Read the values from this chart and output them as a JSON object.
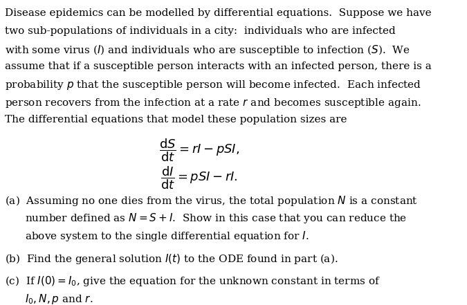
{
  "bg_color": "#ffffff",
  "text_color": "#000000",
  "figsize": [
    6.75,
    4.41
  ],
  "dpi": 100,
  "paragraph": "Disease epidemics can be modelled by differential equations.  Suppose we have\ntwo sub-populations of individuals in a city:  individuals who are infected\nwith some virus ($I$) and individuals who are susceptible to infection ($S$).  We\nassume that if a susceptible person interacts with an infected person, there is a\nprobability $p$ that the susceptible person will become infected.  Each infected\nperson recovers from the infection at a rate $r$ and becomes susceptible again.\nThe differential equations that model these population sizes are",
  "eq1_num": "$\\dfrac{\\mathrm{d}S}{\\mathrm{d}t} = rI - pSI,$",
  "eq2_num": "$\\dfrac{\\mathrm{d}I}{\\mathrm{d}t} = pSI - rI.$",
  "part_a": "(a)  Assuming no one dies from the virus, the total population $N$ is a constant\n      number defined as $N = S+I$.  Show in this case that you can reduce the\n      above system to the single differential equation for $I$.",
  "part_b": "(b)  Find the general solution $I(t)$ to the ODE found in part (a).",
  "part_c": "(c)  If $I(0) = I_0$, give the equation for the unknown constant in terms of\n      $I_0, N, p$ and $r$.",
  "font_size": 11
}
